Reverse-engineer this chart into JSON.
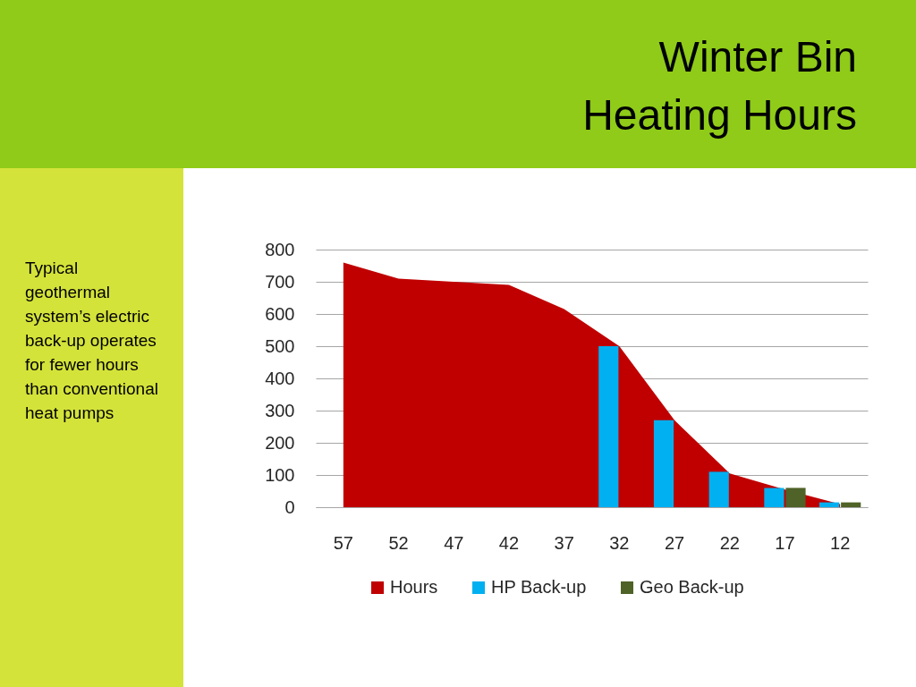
{
  "chart_data": {
    "type": "bar",
    "title": "Winter Bin Heating Hours",
    "annotations": [
      "Typical geothermal system’s electric back-up operates for fewer hours than conventional heat pumps"
    ],
    "categories": [
      "57",
      "52",
      "47",
      "42",
      "37",
      "32",
      "27",
      "22",
      "17",
      "12"
    ],
    "series": [
      {
        "name": "Hours",
        "type": "area",
        "color": "#c00000",
        "values": [
          760,
          710,
          700,
          690,
          615,
          500,
          270,
          105,
          55,
          10
        ]
      },
      {
        "name": "HP Back-up",
        "color": "#00b0f0",
        "values": [
          null,
          null,
          null,
          null,
          null,
          500,
          270,
          110,
          60,
          15
        ]
      },
      {
        "name": "Geo Back-up",
        "color": "#4f6228",
        "values": [
          null,
          null,
          null,
          null,
          null,
          null,
          null,
          null,
          60,
          15
        ]
      }
    ],
    "ylim": [
      0,
      800
    ],
    "yticks": [
      0,
      100,
      200,
      300,
      400,
      500,
      600,
      700,
      800
    ],
    "grid": "y",
    "legend": "bottom"
  }
}
